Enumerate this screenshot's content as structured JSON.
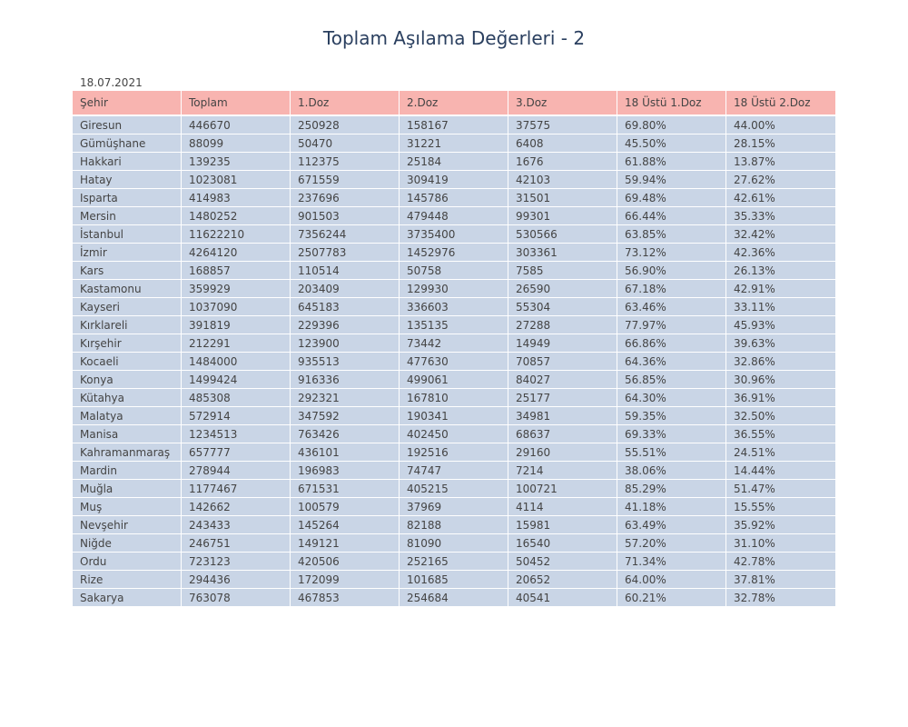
{
  "chart_data": {
    "type": "table",
    "title": "Toplam Aşılama Değerleri - 2",
    "subtitle": "18.07.2021",
    "columns": [
      "Şehir",
      "Toplam",
      "1.Doz",
      "2.Doz",
      "3.Doz",
      "18 Üstü 1.Doz",
      "18 Üstü 2.Doz"
    ],
    "rows": [
      [
        "Giresun",
        "446670",
        "250928",
        "158167",
        "37575",
        "69.80%",
        "44.00%"
      ],
      [
        "Gümüşhane",
        "88099",
        "50470",
        "31221",
        "6408",
        "45.50%",
        "28.15%"
      ],
      [
        "Hakkari",
        "139235",
        "112375",
        "25184",
        "1676",
        "61.88%",
        "13.87%"
      ],
      [
        "Hatay",
        "1023081",
        "671559",
        "309419",
        "42103",
        "59.94%",
        "27.62%"
      ],
      [
        "Isparta",
        "414983",
        "237696",
        "145786",
        "31501",
        "69.48%",
        "42.61%"
      ],
      [
        "Mersin",
        "1480252",
        "901503",
        "479448",
        "99301",
        "66.44%",
        "35.33%"
      ],
      [
        "İstanbul",
        "11622210",
        "7356244",
        "3735400",
        "530566",
        "63.85%",
        "32.42%"
      ],
      [
        "İzmir",
        "4264120",
        "2507783",
        "1452976",
        "303361",
        "73.12%",
        "42.36%"
      ],
      [
        "Kars",
        "168857",
        "110514",
        "50758",
        "7585",
        "56.90%",
        "26.13%"
      ],
      [
        "Kastamonu",
        "359929",
        "203409",
        "129930",
        "26590",
        "67.18%",
        "42.91%"
      ],
      [
        "Kayseri",
        "1037090",
        "645183",
        "336603",
        "55304",
        "63.46%",
        "33.11%"
      ],
      [
        "Kırklareli",
        "391819",
        "229396",
        "135135",
        "27288",
        "77.97%",
        "45.93%"
      ],
      [
        "Kırşehir",
        "212291",
        "123900",
        "73442",
        "14949",
        "66.86%",
        "39.63%"
      ],
      [
        "Kocaeli",
        "1484000",
        "935513",
        "477630",
        "70857",
        "64.36%",
        "32.86%"
      ],
      [
        "Konya",
        "1499424",
        "916336",
        "499061",
        "84027",
        "56.85%",
        "30.96%"
      ],
      [
        "Kütahya",
        "485308",
        "292321",
        "167810",
        "25177",
        "64.30%",
        "36.91%"
      ],
      [
        "Malatya",
        "572914",
        "347592",
        "190341",
        "34981",
        "59.35%",
        "32.50%"
      ],
      [
        "Manisa",
        "1234513",
        "763426",
        "402450",
        "68637",
        "69.33%",
        "36.55%"
      ],
      [
        "Kahramanmaraş",
        "657777",
        "436101",
        "192516",
        "29160",
        "55.51%",
        "24.51%"
      ],
      [
        "Mardin",
        "278944",
        "196983",
        "74747",
        "7214",
        "38.06%",
        "14.44%"
      ],
      [
        "Muğla",
        "1177467",
        "671531",
        "405215",
        "100721",
        "85.29%",
        "51.47%"
      ],
      [
        "Muş",
        "142662",
        "100579",
        "37969",
        "4114",
        "41.18%",
        "15.55%"
      ],
      [
        "Nevşehir",
        "243433",
        "145264",
        "82188",
        "15981",
        "63.49%",
        "35.92%"
      ],
      [
        "Niğde",
        "246751",
        "149121",
        "81090",
        "16540",
        "57.20%",
        "31.10%"
      ],
      [
        "Ordu",
        "723123",
        "420506",
        "252165",
        "50452",
        "71.34%",
        "42.78%"
      ],
      [
        "Rize",
        "294436",
        "172099",
        "101685",
        "20652",
        "64.00%",
        "37.81%"
      ],
      [
        "Sakarya",
        "763078",
        "467853",
        "254684",
        "40541",
        "60.21%",
        "32.78%"
      ]
    ],
    "colors": {
      "header_fill": "#f8b4b0",
      "cell_fill": "#c9d5e6",
      "title": "#2a3f5f",
      "text": "#444444"
    }
  }
}
